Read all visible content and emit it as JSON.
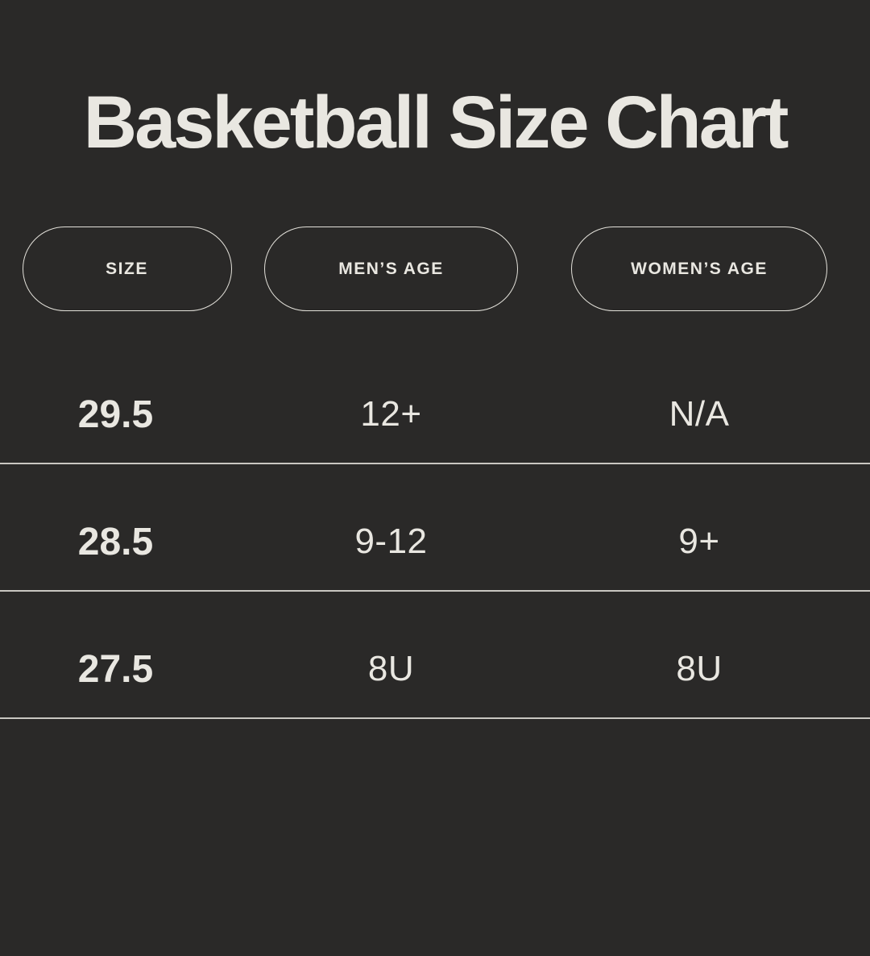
{
  "title": "Basketball Size Chart",
  "colors": {
    "background": "#2a2928",
    "text": "#e9e7e1",
    "pill_border": "#e3e1da",
    "divider": "#c9c7c1"
  },
  "table": {
    "columns": [
      {
        "label": "SIZE"
      },
      {
        "label": "MEN’S AGE"
      },
      {
        "label": "WOMEN’S AGE"
      }
    ],
    "rows": [
      {
        "cells": [
          "29.5",
          "12+",
          "N/A"
        ]
      },
      {
        "cells": [
          "28.5",
          "9-12",
          "9+"
        ]
      },
      {
        "cells": [
          "27.5",
          "8U",
          "8U"
        ]
      }
    ]
  },
  "chart_data": {
    "type": "table",
    "title": "Basketball Size Chart",
    "columns": [
      "SIZE",
      "MEN’S AGE",
      "WOMEN’S AGE"
    ],
    "rows": [
      [
        "29.5",
        "12+",
        "N/A"
      ],
      [
        "28.5",
        "9-12",
        "9+"
      ],
      [
        "27.5",
        "8U",
        "8U"
      ]
    ]
  }
}
